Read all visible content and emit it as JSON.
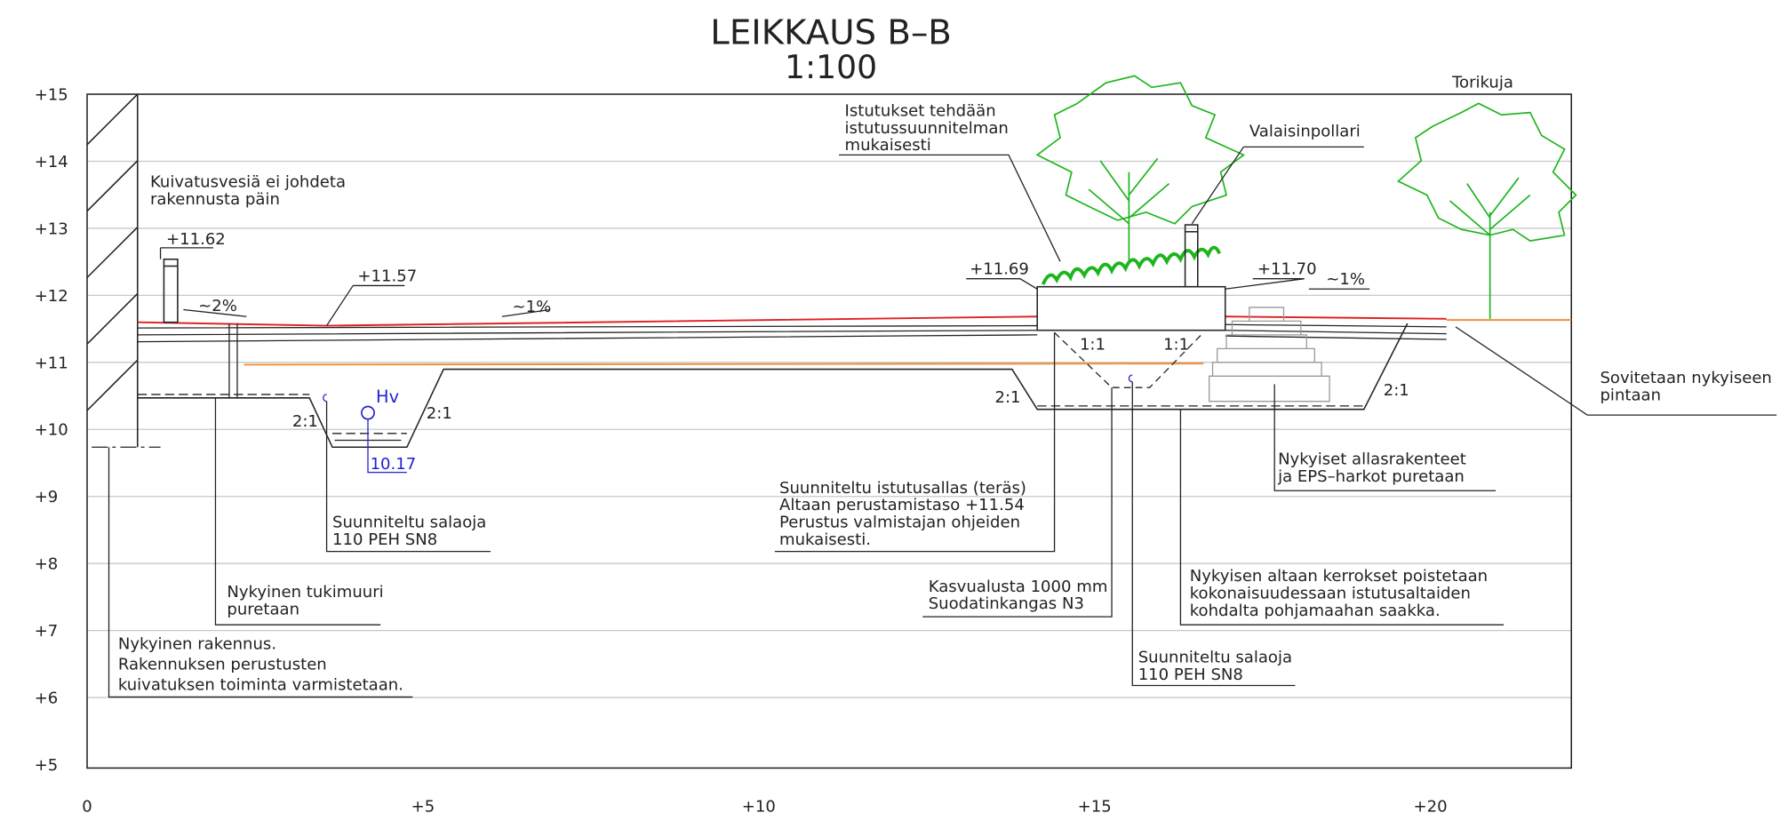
{
  "title": "LEIKKAUS B–B",
  "scale": "1:100",
  "street": "Torikuja",
  "elevation_ticks": [
    "+15",
    "+14",
    "+13",
    "+12",
    "+11",
    "+10",
    "+9",
    "+8",
    "+7",
    "+6",
    "+5"
  ],
  "distance_ticks": [
    "0",
    "+5",
    "+10",
    "+15",
    "+20"
  ],
  "levels": {
    "left_pole": "+11.62",
    "left_surface": "+11.57",
    "pot_left": "+11.69",
    "pot_right": "+11.70"
  },
  "slopes": {
    "left": "~2%",
    "middle": "~1%",
    "right": "~1%"
  },
  "ratios": {
    "trench_left": "2:1",
    "trench_right": "2:1",
    "pot_left": "1:1",
    "pot_right": "1:1",
    "pit_left": "2:1",
    "pit_right": "2:1"
  },
  "well": {
    "label": "Hv",
    "level": "10.17"
  },
  "notes": {
    "drainage": [
      "Kuivatusvesiä ei johdeta",
      "rakennusta päin"
    ],
    "plantings": [
      "Istutukset tehdään",
      "istutussuunnitelman",
      "mukaisesti"
    ],
    "bollard": [
      "Valaisinpollari"
    ],
    "fit": [
      "Sovitetaan nykyiseen",
      "pintaan"
    ],
    "existing_pools": [
      "Nykyiset allasrakenteet",
      "ja EPS–harkot puretaan"
    ],
    "planter": [
      "Suunniteltu istutusallas (teräs)",
      "Altaan perustamistaso +11.54",
      "Perustus valmistajan ohjeiden",
      "mukaisesti."
    ],
    "drain_left": [
      "Suunniteltu salaoja",
      "110 PEH SN8"
    ],
    "growing_medium": [
      "Kasvualusta 1000 mm",
      "Suodatinkangas N3"
    ],
    "layers": [
      "Nykyisen altaan kerrokset poistetaan",
      "kokonaisuudessaan istutusaltaiden",
      "kohdalta pohjamaahan saakka."
    ],
    "retaining_wall": [
      "Nykyinen tukimuuri",
      "puretaan"
    ],
    "drain_right": [
      "Suunniteltu salaoja",
      "110 PEH SN8"
    ],
    "building": [
      "Nykyinen rakennus.",
      "Rakennuksen perustusten",
      "kuivatuksen toiminta varmistetaan."
    ]
  }
}
